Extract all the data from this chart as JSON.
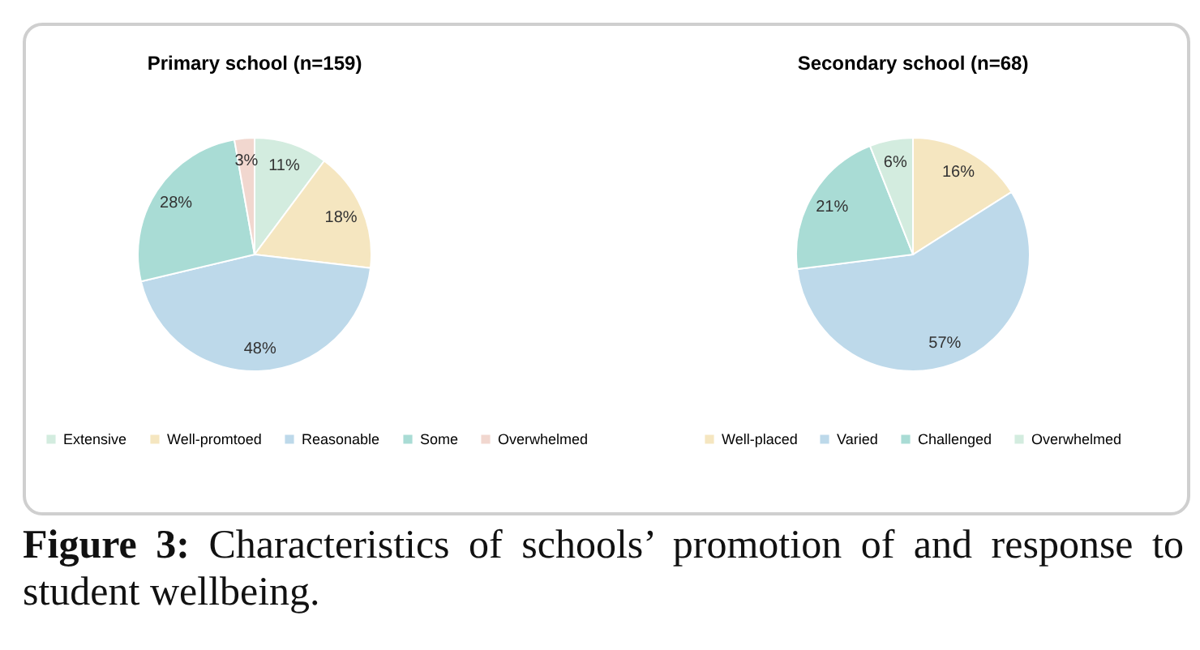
{
  "chart_data": [
    {
      "type": "pie",
      "title": "Primary school (n=159)",
      "categories": [
        "Extensive",
        "Well-promtoed",
        "Reasonable",
        "Some",
        "Overwhelmed"
      ],
      "values": [
        11,
        18,
        48,
        28,
        3
      ],
      "value_labels": [
        "11%",
        "18%",
        "48%",
        "28%",
        "3%"
      ],
      "colors": [
        "#d3ecdf",
        "#f5e6c0",
        "#bdd9ea",
        "#a9dcd5",
        "#f1d7cf"
      ],
      "legend": "bottom"
    },
    {
      "type": "pie",
      "title": "Secondary school (n=68)",
      "categories": [
        "Well-placed",
        "Varied",
        "Challenged",
        "Overwhelmed"
      ],
      "values": [
        16,
        57,
        21,
        6
      ],
      "value_labels": [
        "16%",
        "57%",
        "21%",
        "6%"
      ],
      "colors": [
        "#f5e6c0",
        "#bdd9ea",
        "#a9dcd5",
        "#d3ecdf"
      ],
      "legend": "bottom",
      "annotations": [
        "Figure 3: Characteristics of schools’ promotion of and response to student wellbeing."
      ]
    }
  ]
}
